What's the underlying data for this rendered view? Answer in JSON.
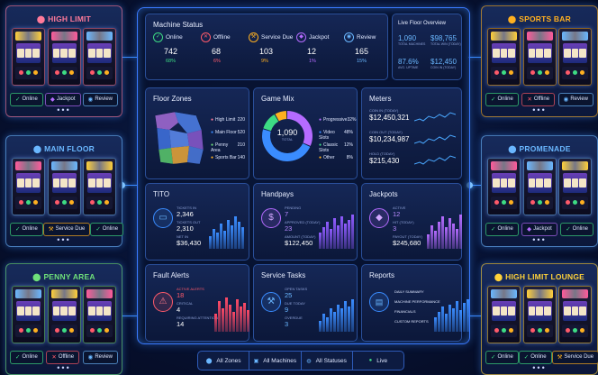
{
  "colors": {
    "accent": "#3a8cff",
    "online": "#3ddc84",
    "offline": "#ff5a6a",
    "service": "#ffb020",
    "jackpot": "#b56bff",
    "review": "#6ab7ff"
  },
  "zones": {
    "high_limit": {
      "title": "HIGH LIMIT",
      "color": "#ff7a9a",
      "badges": [
        {
          "label": "Online",
          "status": "online"
        },
        {
          "label": "Jackpot",
          "status": "jackpot"
        },
        {
          "label": "Review",
          "status": "review"
        }
      ]
    },
    "main_floor": {
      "title": "MAIN FLOOR",
      "color": "#6ab7ff",
      "badges": [
        {
          "label": "Online",
          "status": "online"
        },
        {
          "label": "Service Due",
          "status": "service"
        },
        {
          "label": "Online",
          "status": "online"
        }
      ]
    },
    "penny_area": {
      "title": "PENNY AREA",
      "color": "#6fe07a",
      "badges": [
        {
          "label": "Online",
          "status": "online"
        },
        {
          "label": "Offline",
          "status": "offline"
        },
        {
          "label": "Review",
          "status": "review"
        }
      ]
    },
    "sports_bar": {
      "title": "SPORTS BAR",
      "color": "#ffb020",
      "badges": [
        {
          "label": "Online",
          "status": "online"
        },
        {
          "label": "Offline",
          "status": "offline"
        },
        {
          "label": "Review",
          "status": "review"
        }
      ]
    },
    "promenade": {
      "title": "PROMENADE",
      "color": "#6ab7ff",
      "badges": [
        {
          "label": "Online",
          "status": "online"
        },
        {
          "label": "Jackpot",
          "status": "jackpot"
        },
        {
          "label": "Online",
          "status": "online"
        }
      ]
    },
    "high_limit_lounge": {
      "title": "HIGH LIMIT LOUNGE",
      "color": "#ffd23a",
      "badges": [
        {
          "label": "Online",
          "status": "online"
        },
        {
          "label": "Online",
          "status": "online"
        },
        {
          "label": "Service Due",
          "status": "service"
        }
      ]
    }
  },
  "machine_status": {
    "title": "Machine Status",
    "items": [
      {
        "label": "Online",
        "value": "742",
        "pct": "68%",
        "icon": "check-icon",
        "color": "#3ddc84",
        "glyph": "✓"
      },
      {
        "label": "Offline",
        "value": "68",
        "pct": "6%",
        "icon": "x-circle-icon",
        "color": "#ff5a6a",
        "glyph": "✕"
      },
      {
        "label": "Service Due",
        "value": "103",
        "pct": "9%",
        "icon": "wrench-icon",
        "color": "#ffb020",
        "glyph": "⚒"
      },
      {
        "label": "Jackpot",
        "value": "12",
        "pct": "1%",
        "icon": "diamond-icon",
        "color": "#b56bff",
        "glyph": "◆"
      },
      {
        "label": "Review",
        "value": "165",
        "pct": "15%",
        "icon": "eye-icon",
        "color": "#6ab7ff",
        "glyph": "◉"
      }
    ]
  },
  "live_floor": {
    "title": "Live Floor Overview",
    "stats": [
      {
        "value": "1,090",
        "label": "TOTAL MACHINES"
      },
      {
        "value": "$98,765",
        "label": "TOTAL WIN (TODAY)"
      },
      {
        "value": "87.6%",
        "label": "AVG. UPTIME"
      },
      {
        "value": "$12,450",
        "label": "COIN IN (TODAY)"
      }
    ]
  },
  "floor_zones": {
    "title": "Floor Zones",
    "legend": [
      {
        "label": "High Limit",
        "value": "220",
        "color": "#ff7a9a"
      },
      {
        "label": "Main Floor",
        "value": "520",
        "color": "#3a8cff"
      },
      {
        "label": "Penny Area",
        "value": "210",
        "color": "#6fe07a"
      },
      {
        "label": "Sports Bar",
        "value": "140",
        "color": "#ffb020"
      }
    ]
  },
  "game_mix": {
    "title": "Game Mix",
    "total": "1,090",
    "total_label": "TOTAL",
    "legend": [
      {
        "label": "Progressive",
        "value": "32%",
        "color": "#b56bff"
      },
      {
        "label": "Video Slots",
        "value": "48%",
        "color": "#3a8cff"
      },
      {
        "label": "Classic Slots",
        "value": "12%",
        "color": "#3ddc84"
      },
      {
        "label": "Other",
        "value": "8%",
        "color": "#ffb020"
      }
    ],
    "chart_data": {
      "type": "pie",
      "categories": [
        "Progressive",
        "Video Slots",
        "Classic Slots",
        "Other"
      ],
      "values": [
        32,
        48,
        12,
        8
      ]
    }
  },
  "meters": {
    "title": "Meters",
    "rows": [
      {
        "label": "COIN IN (TODAY)",
        "value": "$12,450,321"
      },
      {
        "label": "COIN OUT (TODAY)",
        "value": "$10,234,987"
      },
      {
        "label": "HOLD (TODAY)",
        "value": "$215,430"
      }
    ]
  },
  "tito": {
    "title": "TITO",
    "rows": [
      {
        "label": "TICKETS IN",
        "value": "2,346"
      },
      {
        "label": "TICKETS OUT",
        "value": "2,310"
      },
      {
        "label": "NET IN",
        "value": "$36,430"
      }
    ]
  },
  "handpays": {
    "title": "Handpays",
    "rows": [
      {
        "label": "PENDING",
        "value": "7"
      },
      {
        "label": "APPROVED (TODAY)",
        "value": "23"
      },
      {
        "label": "AMOUNT (TODAY)",
        "value": "$122,450"
      }
    ]
  },
  "jackpots": {
    "title": "Jackpots",
    "rows": [
      {
        "label": "ACTIVE",
        "value": "12"
      },
      {
        "label": "HIT (TODAY)",
        "value": "3"
      },
      {
        "label": "PAYOUT (TODAY)",
        "value": "$245,680"
      }
    ]
  },
  "fault_alerts": {
    "title": "Fault Alerts",
    "rows": [
      {
        "label": "ACTIVE ALERTS",
        "value": "18"
      },
      {
        "label": "CRITICAL",
        "value": "4"
      },
      {
        "label": "REQUIRING ATTENTION",
        "value": "14"
      }
    ]
  },
  "service_tasks": {
    "title": "Service Tasks",
    "rows": [
      {
        "label": "OPEN TASKS",
        "value": "25"
      },
      {
        "label": "DUE TODAY",
        "value": "9"
      },
      {
        "label": "OVERDUE",
        "value": "3"
      }
    ]
  },
  "reports": {
    "title": "Reports",
    "items": [
      "DAILY SUMMARY",
      "MACHINE PERFORMANCE",
      "FINANCIALS",
      "CUSTOM REPORTS"
    ]
  },
  "filters": {
    "items": [
      {
        "label": "All Zones",
        "icon": "location-pin-icon"
      },
      {
        "label": "All Machines",
        "icon": "machine-icon"
      },
      {
        "label": "All Statuses",
        "icon": "status-icon"
      },
      {
        "label": "Live",
        "icon": "live-dot-icon"
      }
    ]
  }
}
